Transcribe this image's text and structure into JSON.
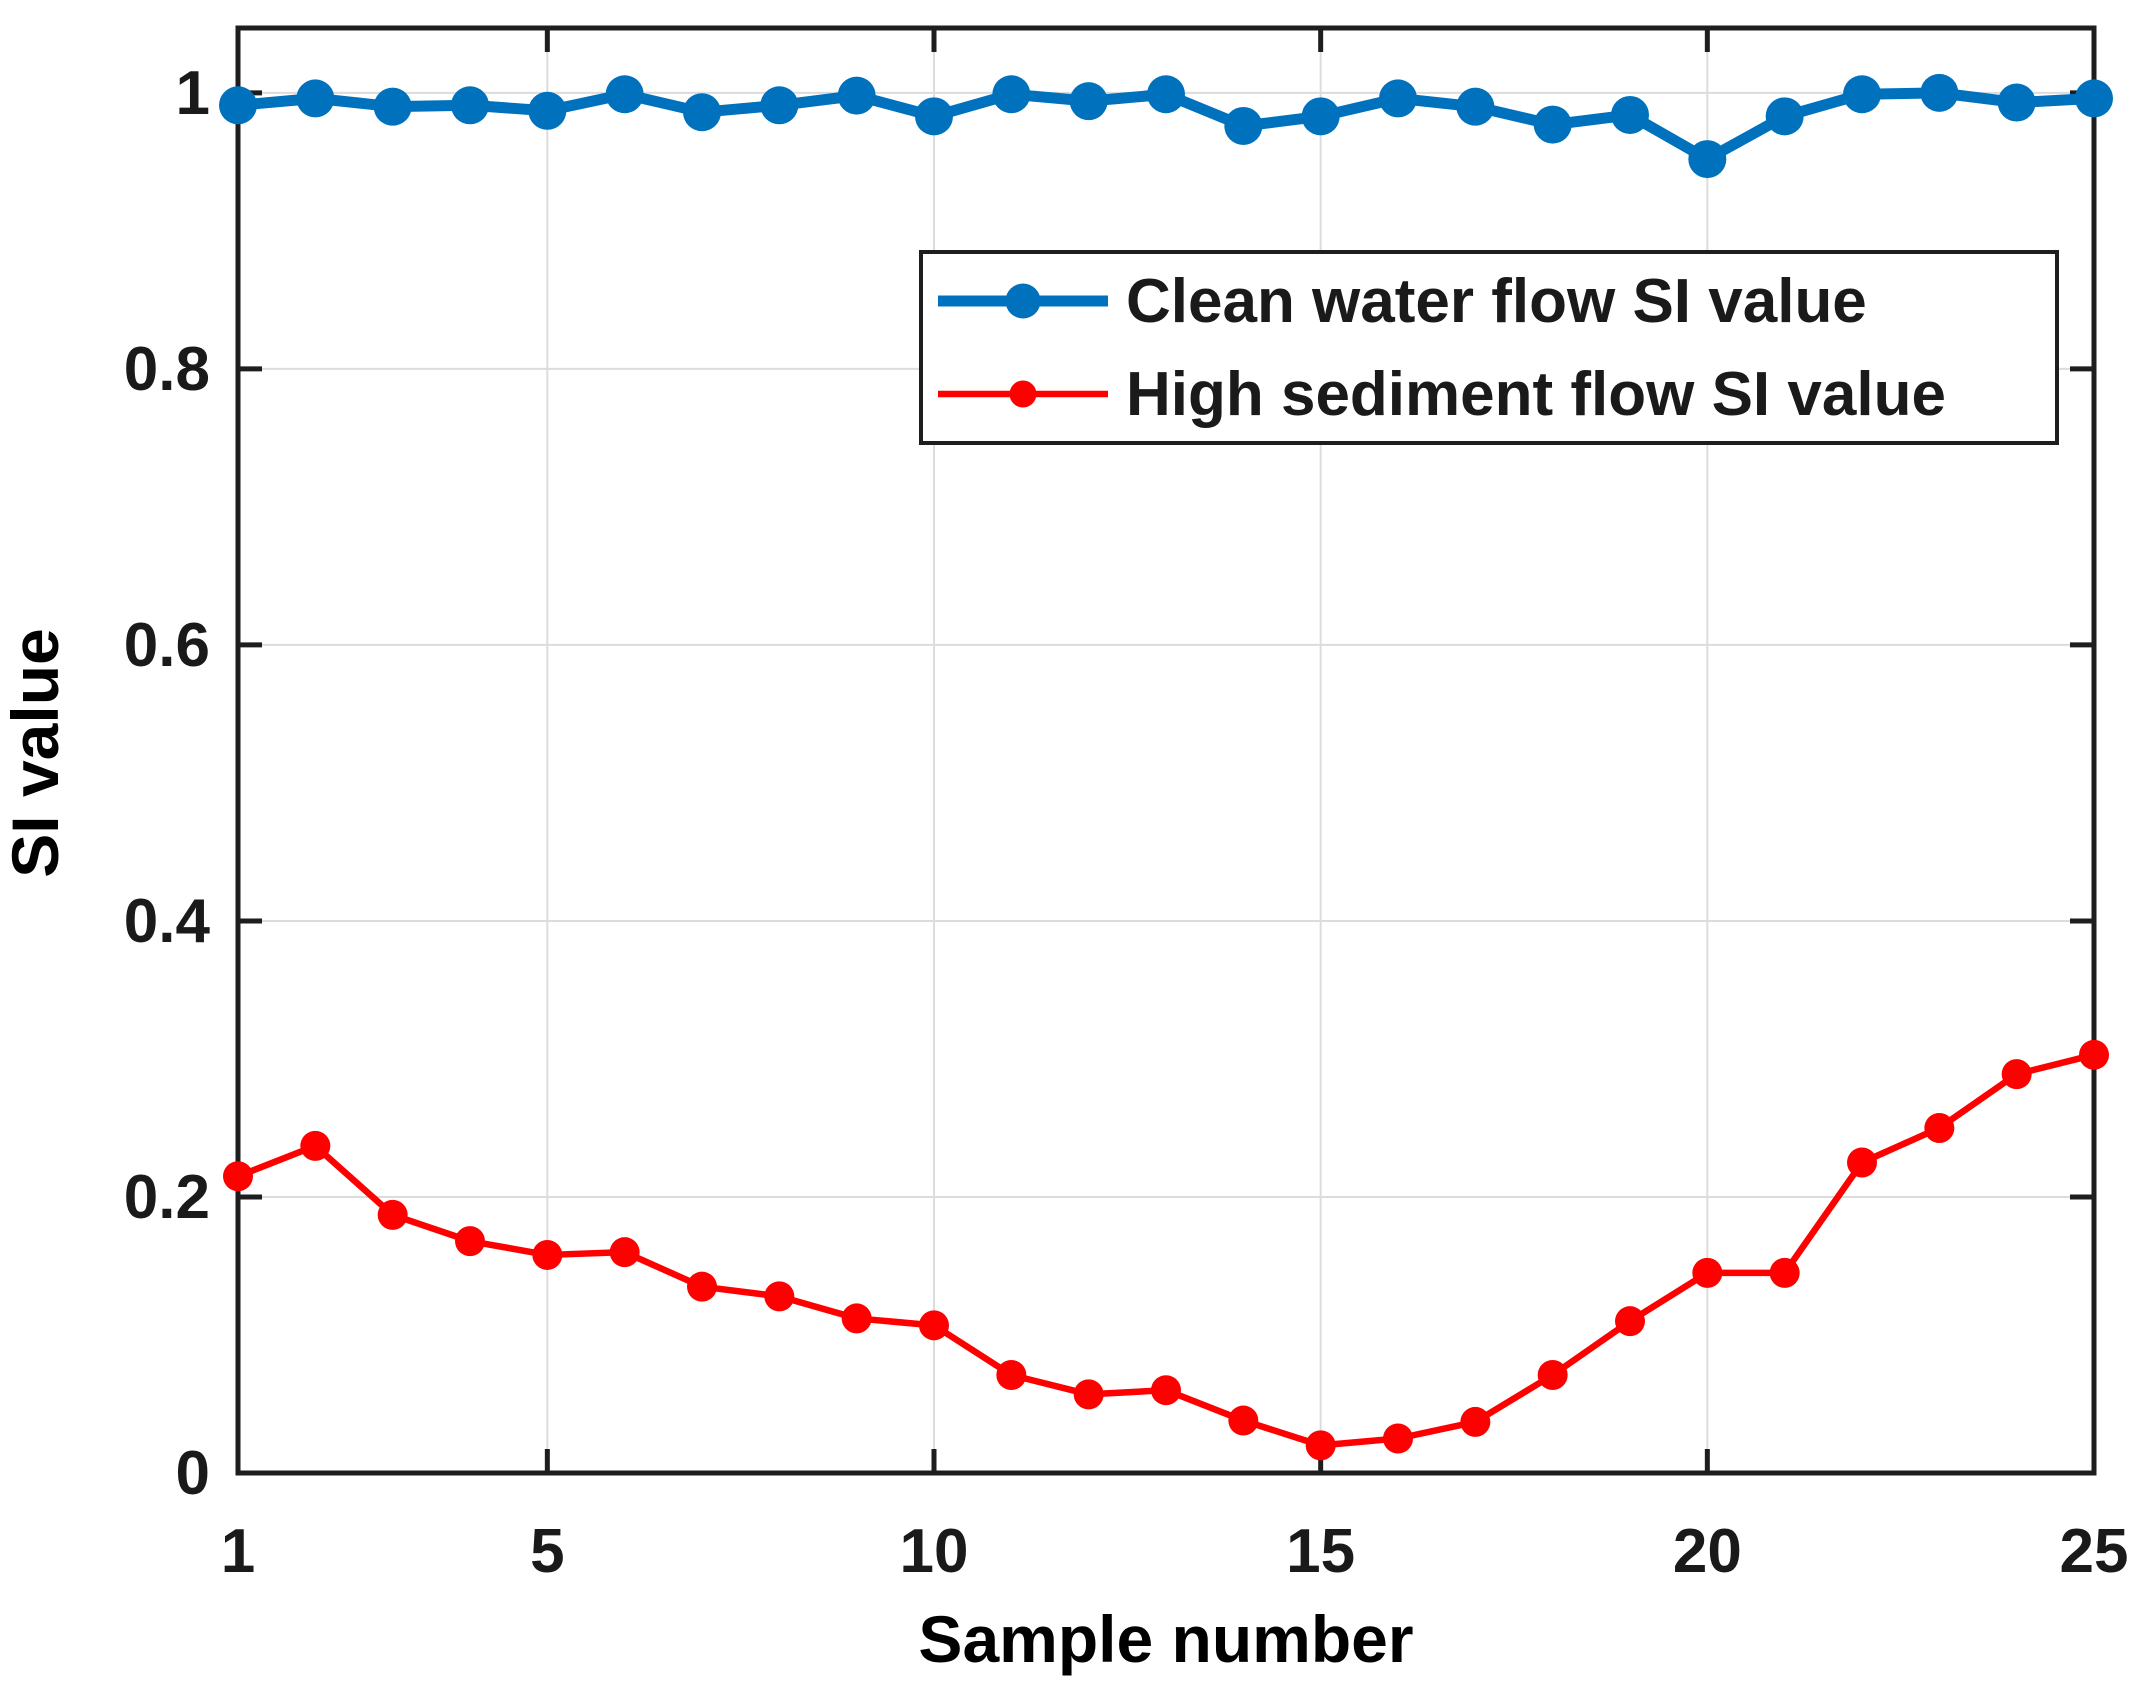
{
  "figure": {
    "background": "#ffffff",
    "axis_color": "#1e1e1e",
    "grid_color": "#dcdcdc",
    "tick_label_color": "#1a1a1a"
  },
  "chart_data": {
    "type": "line",
    "title": "",
    "xlabel": "Sample number",
    "ylabel": "SI value",
    "x": [
      1,
      2,
      3,
      4,
      5,
      6,
      7,
      8,
      9,
      10,
      11,
      12,
      13,
      14,
      15,
      16,
      17,
      18,
      19,
      20,
      21,
      22,
      23,
      24,
      25
    ],
    "xlim": [
      1,
      25
    ],
    "ylim": [
      0,
      1.047
    ],
    "xticks": {
      "values": [
        1,
        5,
        10,
        15,
        20,
        25
      ],
      "labels": [
        "1",
        "5",
        "10",
        "15",
        "20",
        "25"
      ]
    },
    "yticks": {
      "values": [
        0,
        0.2,
        0.4,
        0.6,
        0.8,
        1
      ],
      "labels": [
        "0",
        "0.2",
        "0.4",
        "0.6",
        "0.8",
        "1"
      ]
    },
    "grid": true,
    "legend_position": "upper center-right",
    "series": [
      {
        "name": "Clean water flow SI value",
        "color": "#0072BD",
        "marker": "filled-circle",
        "values": [
          0.991,
          0.996,
          0.99,
          0.991,
          0.987,
          0.999,
          0.986,
          0.991,
          0.998,
          0.983,
          0.999,
          0.994,
          0.999,
          0.976,
          0.983,
          0.996,
          0.99,
          0.977,
          0.984,
          0.952,
          0.983,
          0.999,
          1.0,
          0.993,
          0.996
        ]
      },
      {
        "name": "High sediment flow SI value",
        "color": "#FF0000",
        "marker": "filled-circle",
        "values": [
          0.215,
          0.237,
          0.187,
          0.168,
          0.158,
          0.16,
          0.135,
          0.128,
          0.112,
          0.107,
          0.071,
          0.057,
          0.06,
          0.038,
          0.02,
          0.025,
          0.037,
          0.071,
          0.11,
          0.145,
          0.145,
          0.225,
          0.25,
          0.289,
          0.303
        ]
      }
    ]
  }
}
